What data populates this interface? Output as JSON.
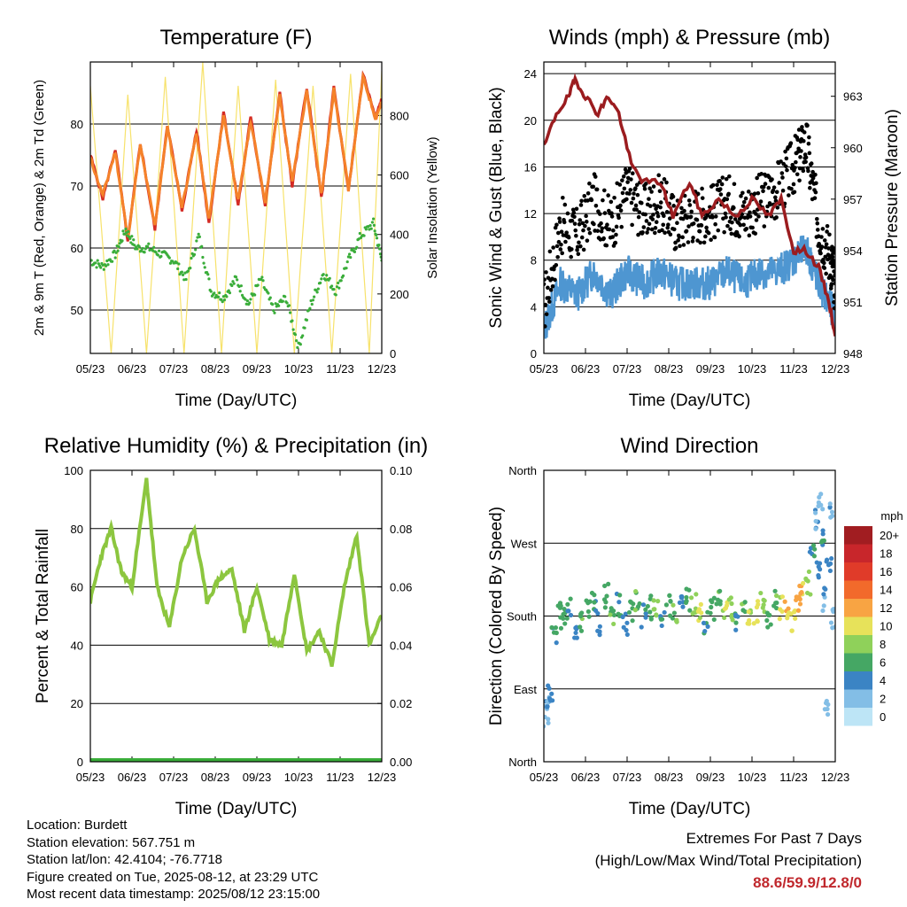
{
  "footer": {
    "location": "Location: Burdett",
    "elevation": "Station elevation: 567.751 m",
    "latlon": "Station lat/lon: 42.4104; -76.7718",
    "created": "Figure created on Tue, 2025-08-12, at 23:29 UTC",
    "recent": "Most recent data timestamp: 2025/08/12 23:15:00"
  },
  "extremes": {
    "title": "Extremes For Past 7 Days",
    "subtitle": "(High/Low/Max Wind/Total Precipitation)",
    "values": "88.6/59.9/12.8/0",
    "value_color": "#c0282d"
  },
  "colors": {
    "temp2m": "#d42a24",
    "temp9m": "#f5822a",
    "dewpoint": "#3aad3a",
    "solar": "#f7e26b",
    "wind": "#4e96d1",
    "gust": "#000000",
    "pressure": "#9b1c1f",
    "rh": "#8cc63f",
    "precip": "#3aad3a"
  },
  "chart_data": [
    {
      "id": "temperature",
      "type": "line",
      "title": "Temperature (F)",
      "xlabel": "Time (Day/UTC)",
      "ylabel": "2m & 9m T (Red, Orange) & 2m Td (Green)",
      "ylabel_right": "Solar Insolation (Yellow)",
      "x_ticks": [
        "05/23",
        "06/23",
        "07/23",
        "08/23",
        "09/23",
        "10/23",
        "11/23",
        "12/23"
      ],
      "x_range": [
        0,
        7
      ],
      "ylim": [
        43,
        90
      ],
      "y_ticks": [
        50,
        60,
        70,
        80
      ],
      "y2lim": [
        0,
        980
      ],
      "y2_ticks": [
        0,
        200,
        400,
        600,
        800
      ],
      "grid": "horizontal",
      "series": [
        {
          "key": "temp2m",
          "x": [
            0,
            0.3,
            0.6,
            0.9,
            1.2,
            1.55,
            1.85,
            2.2,
            2.55,
            2.85,
            3.2,
            3.55,
            3.85,
            4.2,
            4.55,
            4.85,
            5.2,
            5.55,
            5.85,
            6.2,
            6.55,
            6.85,
            7.0
          ],
          "y": [
            75,
            68,
            76,
            61,
            77,
            63,
            80,
            66,
            79,
            64,
            82,
            67,
            81,
            67,
            85,
            70,
            86,
            68,
            86,
            69,
            88,
            81,
            84
          ]
        },
        {
          "key": "temp9m",
          "x": [
            0,
            0.3,
            0.6,
            0.9,
            1.2,
            1.55,
            1.85,
            2.2,
            2.55,
            2.85,
            3.2,
            3.55,
            3.85,
            4.2,
            4.55,
            4.85,
            5.2,
            5.55,
            5.85,
            6.2,
            6.55,
            6.85,
            7.0
          ],
          "y": [
            74.5,
            68.5,
            75.5,
            61.5,
            76.5,
            63.5,
            79.5,
            66.5,
            78.5,
            64.5,
            81.5,
            67.5,
            80.5,
            67.5,
            84.5,
            70.5,
            85.5,
            68.5,
            85.5,
            69.5,
            87.5,
            81,
            83.5
          ]
        },
        {
          "key": "dewpoint",
          "x": [
            0,
            0.3,
            0.6,
            0.85,
            1.1,
            1.4,
            1.7,
            2.0,
            2.3,
            2.6,
            2.9,
            3.2,
            3.5,
            3.8,
            4.1,
            4.4,
            4.7,
            5.0,
            5.3,
            5.6,
            5.9,
            6.2,
            6.5,
            6.8,
            7.0
          ],
          "y": [
            58,
            57,
            59,
            63,
            60,
            60,
            59,
            58,
            55,
            62,
            53,
            52,
            55,
            51,
            55,
            50,
            52,
            44,
            51,
            56,
            53,
            58,
            62,
            64,
            58
          ]
        },
        {
          "key": "solar",
          "x": [
            0,
            0.5,
            0.9,
            1.35,
            1.8,
            2.25,
            2.7,
            3.15,
            3.55,
            4.0,
            4.45,
            4.9,
            5.35,
            5.8,
            6.25,
            6.7,
            7.0
          ],
          "y": [
            900,
            0,
            870,
            0,
            930,
            0,
            980,
            0,
            900,
            0,
            920,
            0,
            900,
            0,
            940,
            0,
            950
          ]
        }
      ]
    },
    {
      "id": "winds",
      "type": "scatter",
      "title": "Winds (mph) & Pressure (mb)",
      "xlabel": "Time (Day/UTC)",
      "ylabel": "Sonic Wind & Gust (Blue, Black)",
      "ylabel_right": "Station Pressure (Maroon)",
      "x_ticks": [
        "05/23",
        "06/23",
        "07/23",
        "08/23",
        "09/23",
        "10/23",
        "11/23",
        "12/23"
      ],
      "x_range": [
        0,
        7
      ],
      "ylim": [
        0,
        25
      ],
      "y_ticks": [
        0,
        4,
        8,
        12,
        16,
        20,
        24
      ],
      "y2lim": [
        948,
        965
      ],
      "y2_ticks": [
        948,
        951,
        954,
        957,
        960,
        963
      ],
      "grid": "horizontal",
      "series": [
        {
          "key": "wind",
          "x": [
            0,
            0.4,
            0.8,
            1.2,
            1.6,
            2.0,
            2.4,
            2.8,
            3.2,
            3.6,
            4.0,
            4.4,
            4.8,
            5.2,
            5.6,
            6.0,
            6.3,
            6.6,
            6.9,
            7.0
          ],
          "y": [
            2,
            6,
            5,
            7,
            5,
            7,
            6,
            7,
            6,
            6,
            6,
            7,
            6,
            7,
            7,
            8,
            9,
            6,
            4,
            3
          ]
        },
        {
          "key": "gust",
          "x": [
            0,
            0.4,
            0.8,
            1.2,
            1.6,
            2.0,
            2.4,
            2.8,
            3.2,
            3.6,
            4.0,
            4.4,
            4.8,
            5.2,
            5.6,
            6.0,
            6.3,
            6.6,
            6.9,
            7.0
          ],
          "y": [
            4,
            11,
            10,
            13,
            11,
            14,
            12,
            13,
            11,
            12,
            12,
            13,
            12,
            13,
            14,
            16,
            18,
            11,
            8,
            6
          ]
        },
        {
          "key": "pressure",
          "x": [
            0,
            0.3,
            0.6,
            0.75,
            1.0,
            1.3,
            1.55,
            1.8,
            2.1,
            2.4,
            2.8,
            3.1,
            3.5,
            3.8,
            4.2,
            4.6,
            5.0,
            5.4,
            5.7,
            6.0,
            6.3,
            6.6,
            6.85,
            7.0
          ],
          "y": [
            960,
            962,
            963,
            964,
            963,
            962,
            963,
            962,
            959,
            958,
            958,
            956,
            958,
            956,
            957,
            956,
            957,
            956,
            957,
            954,
            954,
            953,
            951,
            949
          ]
        }
      ]
    },
    {
      "id": "humidity",
      "type": "line",
      "title": "Relative Humidity (%) & Precipitation (in)",
      "xlabel": "Time (Day/UTC)",
      "ylabel": "Percent & Total Rainfall",
      "x_ticks": [
        "05/23",
        "06/23",
        "07/23",
        "08/23",
        "09/23",
        "10/23",
        "11/23",
        "12/23"
      ],
      "x_range": [
        0,
        7
      ],
      "ylim": [
        0,
        100
      ],
      "y_ticks": [
        0,
        20,
        40,
        60,
        80,
        100
      ],
      "y2lim": [
        0,
        0.1
      ],
      "y2_ticks": [
        "0.00",
        "0.02",
        "0.04",
        "0.06",
        "0.08",
        "0.10"
      ],
      "grid": "horizontal",
      "series": [
        {
          "key": "rh",
          "x": [
            0,
            0.25,
            0.5,
            0.75,
            1.0,
            1.35,
            1.6,
            1.9,
            2.2,
            2.5,
            2.8,
            3.1,
            3.4,
            3.7,
            4.0,
            4.3,
            4.6,
            4.9,
            5.2,
            5.5,
            5.8,
            6.1,
            6.4,
            6.7,
            7.0
          ],
          "y": [
            55,
            70,
            80,
            65,
            60,
            97,
            60,
            46,
            70,
            80,
            55,
            63,
            66,
            45,
            60,
            42,
            40,
            65,
            38,
            45,
            33,
            60,
            78,
            40,
            50
          ]
        },
        {
          "key": "precip",
          "x": [
            0,
            7
          ],
          "y": [
            0,
            0
          ]
        }
      ]
    },
    {
      "id": "wind_direction",
      "type": "scatter",
      "title": "Wind Direction",
      "xlabel": "Time (Day/UTC)",
      "ylabel": "Direction (Colored By Speed)",
      "x_ticks": [
        "05/23",
        "06/23",
        "07/23",
        "08/23",
        "09/23",
        "10/23",
        "11/23",
        "12/23"
      ],
      "x_range": [
        0,
        7
      ],
      "y_tick_labels": [
        "North",
        "East",
        "South",
        "West",
        "North"
      ],
      "ylim": [
        0,
        360
      ],
      "grid": "horizontal",
      "legend": {
        "title": "mph",
        "labels": [
          "20+",
          "18",
          "16",
          "14",
          "12",
          "10",
          "8",
          "6",
          "4",
          "2",
          "0"
        ],
        "colors": [
          "#a11d21",
          "#c8262b",
          "#e03b29",
          "#f26a2b",
          "#f8a443",
          "#e7e25a",
          "#8fd15a",
          "#45a764",
          "#3b84c4",
          "#83bee6",
          "#bde5f6"
        ],
        "placement": "right"
      },
      "points": [
        {
          "x": 0.05,
          "y": 55,
          "s": 2
        },
        {
          "x": 0.1,
          "y": 75,
          "s": 3
        },
        {
          "x": 0.15,
          "y": 90,
          "s": 4
        },
        {
          "x": 0.25,
          "y": 160,
          "s": 5
        },
        {
          "x": 0.35,
          "y": 185,
          "s": 6
        },
        {
          "x": 0.45,
          "y": 175,
          "s": 6
        },
        {
          "x": 0.6,
          "y": 190,
          "s": 5
        },
        {
          "x": 0.75,
          "y": 165,
          "s": 4
        },
        {
          "x": 0.9,
          "y": 175,
          "s": 7
        },
        {
          "x": 1.05,
          "y": 185,
          "s": 6
        },
        {
          "x": 1.2,
          "y": 200,
          "s": 5
        },
        {
          "x": 1.35,
          "y": 170,
          "s": 4
        },
        {
          "x": 1.5,
          "y": 205,
          "s": 6
        },
        {
          "x": 1.65,
          "y": 180,
          "s": 7
        },
        {
          "x": 1.8,
          "y": 195,
          "s": 5
        },
        {
          "x": 1.95,
          "y": 170,
          "s": 4
        },
        {
          "x": 2.1,
          "y": 185,
          "s": 6
        },
        {
          "x": 2.25,
          "y": 200,
          "s": 7
        },
        {
          "x": 2.4,
          "y": 180,
          "s": 5
        },
        {
          "x": 2.55,
          "y": 190,
          "s": 6
        },
        {
          "x": 2.7,
          "y": 185,
          "s": 8
        },
        {
          "x": 2.85,
          "y": 175,
          "s": 5
        },
        {
          "x": 3.0,
          "y": 195,
          "s": 6
        },
        {
          "x": 3.15,
          "y": 180,
          "s": 7
        },
        {
          "x": 3.3,
          "y": 190,
          "s": 4
        },
        {
          "x": 3.45,
          "y": 200,
          "s": 6
        },
        {
          "x": 3.6,
          "y": 195,
          "s": 8
        },
        {
          "x": 3.75,
          "y": 185,
          "s": 9
        },
        {
          "x": 3.9,
          "y": 170,
          "s": 5
        },
        {
          "x": 4.05,
          "y": 190,
          "s": 6
        },
        {
          "x": 4.2,
          "y": 200,
          "s": 7
        },
        {
          "x": 4.35,
          "y": 185,
          "s": 9
        },
        {
          "x": 4.5,
          "y": 190,
          "s": 8
        },
        {
          "x": 4.65,
          "y": 175,
          "s": 5
        },
        {
          "x": 4.8,
          "y": 195,
          "s": 7
        },
        {
          "x": 4.95,
          "y": 180,
          "s": 9
        },
        {
          "x": 5.1,
          "y": 185,
          "s": 10
        },
        {
          "x": 5.25,
          "y": 195,
          "s": 8
        },
        {
          "x": 5.4,
          "y": 175,
          "s": 6
        },
        {
          "x": 5.55,
          "y": 200,
          "s": 7
        },
        {
          "x": 5.7,
          "y": 190,
          "s": 9
        },
        {
          "x": 5.85,
          "y": 185,
          "s": 11
        },
        {
          "x": 6.0,
          "y": 175,
          "s": 10
        },
        {
          "x": 6.1,
          "y": 195,
          "s": 12
        },
        {
          "x": 6.2,
          "y": 210,
          "s": 11
        },
        {
          "x": 6.35,
          "y": 220,
          "s": 8
        },
        {
          "x": 6.45,
          "y": 260,
          "s": 5
        },
        {
          "x": 6.55,
          "y": 300,
          "s": 3
        },
        {
          "x": 6.6,
          "y": 240,
          "s": 4
        },
        {
          "x": 6.65,
          "y": 320,
          "s": 2
        },
        {
          "x": 6.7,
          "y": 280,
          "s": 5
        },
        {
          "x": 6.75,
          "y": 200,
          "s": 3
        },
        {
          "x": 6.8,
          "y": 70,
          "s": 2
        },
        {
          "x": 6.85,
          "y": 250,
          "s": 4
        },
        {
          "x": 6.9,
          "y": 310,
          "s": 3
        },
        {
          "x": 6.95,
          "y": 180,
          "s": 2
        }
      ]
    }
  ]
}
